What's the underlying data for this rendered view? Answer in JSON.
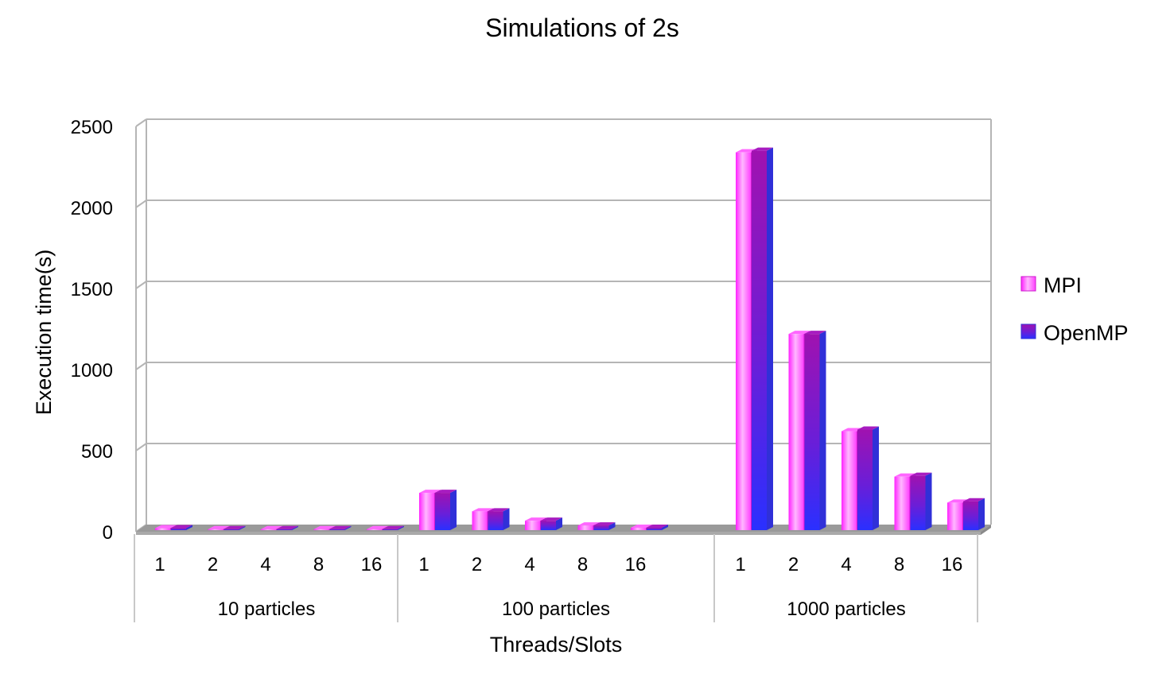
{
  "chart_data": {
    "type": "bar",
    "title": "Simulations of 2s",
    "xlabel": "Threads/Slots",
    "ylabel": "Execution time(s)",
    "ylim": [
      0,
      2500
    ],
    "yticks": [
      "0",
      "500",
      "1000",
      "1500",
      "2000",
      "2500"
    ],
    "grid": true,
    "legend_position": "right",
    "groups": [
      {
        "label": "10 particles",
        "categories": [
          "1",
          "2",
          "4",
          "8",
          "16"
        ]
      },
      {
        "label": "100 particles",
        "categories": [
          "1",
          "2",
          "4",
          "8",
          "16"
        ]
      },
      {
        "label": "1000 particles",
        "categories": [
          "1",
          "2",
          "4",
          "8",
          "16"
        ]
      }
    ],
    "series": [
      {
        "name": "MPI",
        "color": "#ff33ff",
        "values": [
          [
            12,
            6,
            3,
            1.5,
            1
          ],
          [
            230,
            116,
            58,
            29,
            15
          ],
          [
            2330,
            1210,
            610,
            330,
            170
          ]
        ]
      },
      {
        "name": "OpenMP",
        "color": "#8a10c8",
        "values": [
          [
            12,
            6,
            3,
            1.5,
            1
          ],
          [
            230,
            116,
            58,
            29,
            15
          ],
          [
            2340,
            1210,
            620,
            335,
            178
          ]
        ]
      }
    ]
  }
}
